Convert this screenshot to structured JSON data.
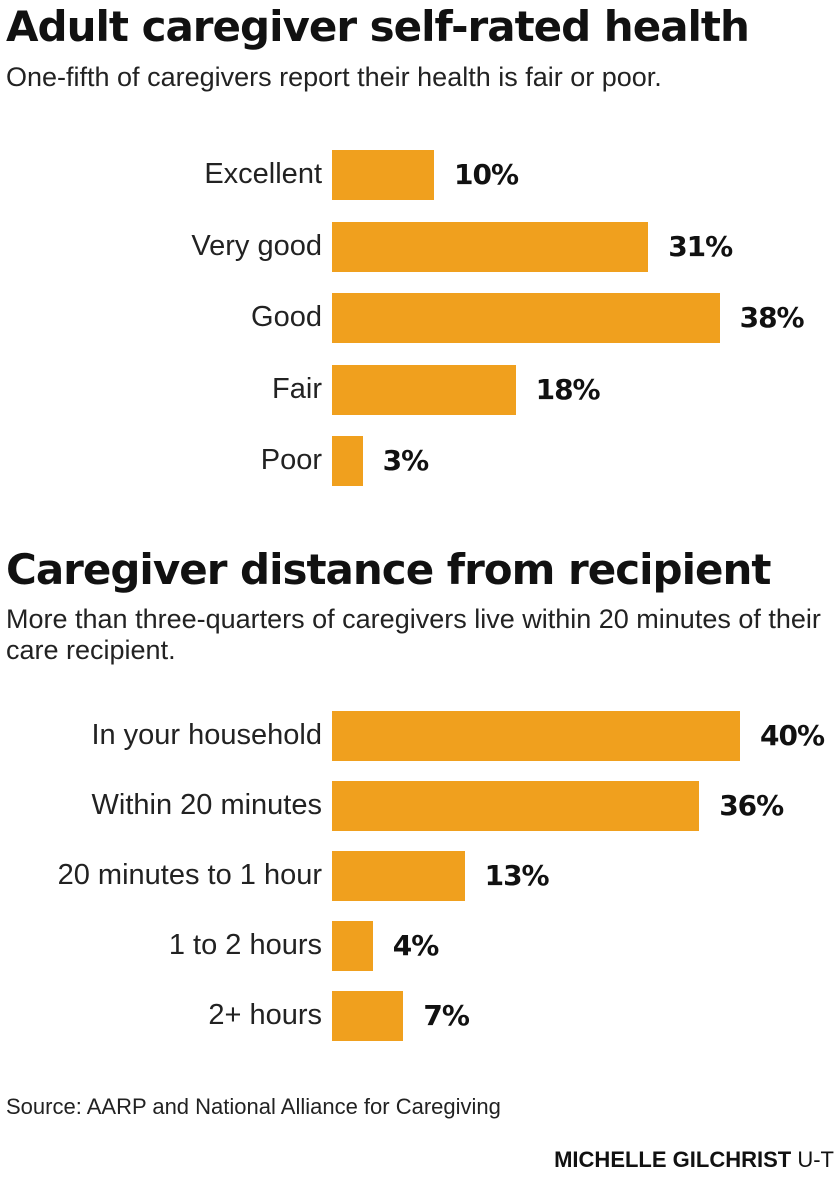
{
  "chart_data": [
    {
      "type": "bar",
      "orientation": "horizontal",
      "title": "Adult caregiver self-rated health",
      "subtitle": "One-fifth of caregivers report their health is fair or poor.",
      "categories": [
        "Excellent",
        "Very good",
        "Good",
        "Fair",
        "Poor"
      ],
      "values": [
        10,
        31,
        38,
        18,
        3
      ],
      "labels": [
        "10%",
        "31%",
        "38%",
        "18%",
        "3%"
      ],
      "color": "#F0A01E",
      "xlim": [
        0,
        40
      ]
    },
    {
      "type": "bar",
      "orientation": "horizontal",
      "title": "Caregiver distance from recipient",
      "subtitle": "More than three-quarters of caregivers live within 20 minutes of their care recipient.",
      "categories": [
        "In your household",
        "Within 20 minutes",
        "20 minutes to 1 hour",
        "1 to 2 hours",
        "2+ hours"
      ],
      "values": [
        40,
        36,
        13,
        4,
        7
      ],
      "labels": [
        "40%",
        "36%",
        "13%",
        "4%",
        "7%"
      ],
      "color": "#F0A01E",
      "xlim": [
        0,
        40
      ]
    }
  ],
  "source": "Source: AARP and National Alliance for Caregiving",
  "credit": {
    "name": "MICHELLE GILCHRIST",
    "org": "U-T"
  }
}
